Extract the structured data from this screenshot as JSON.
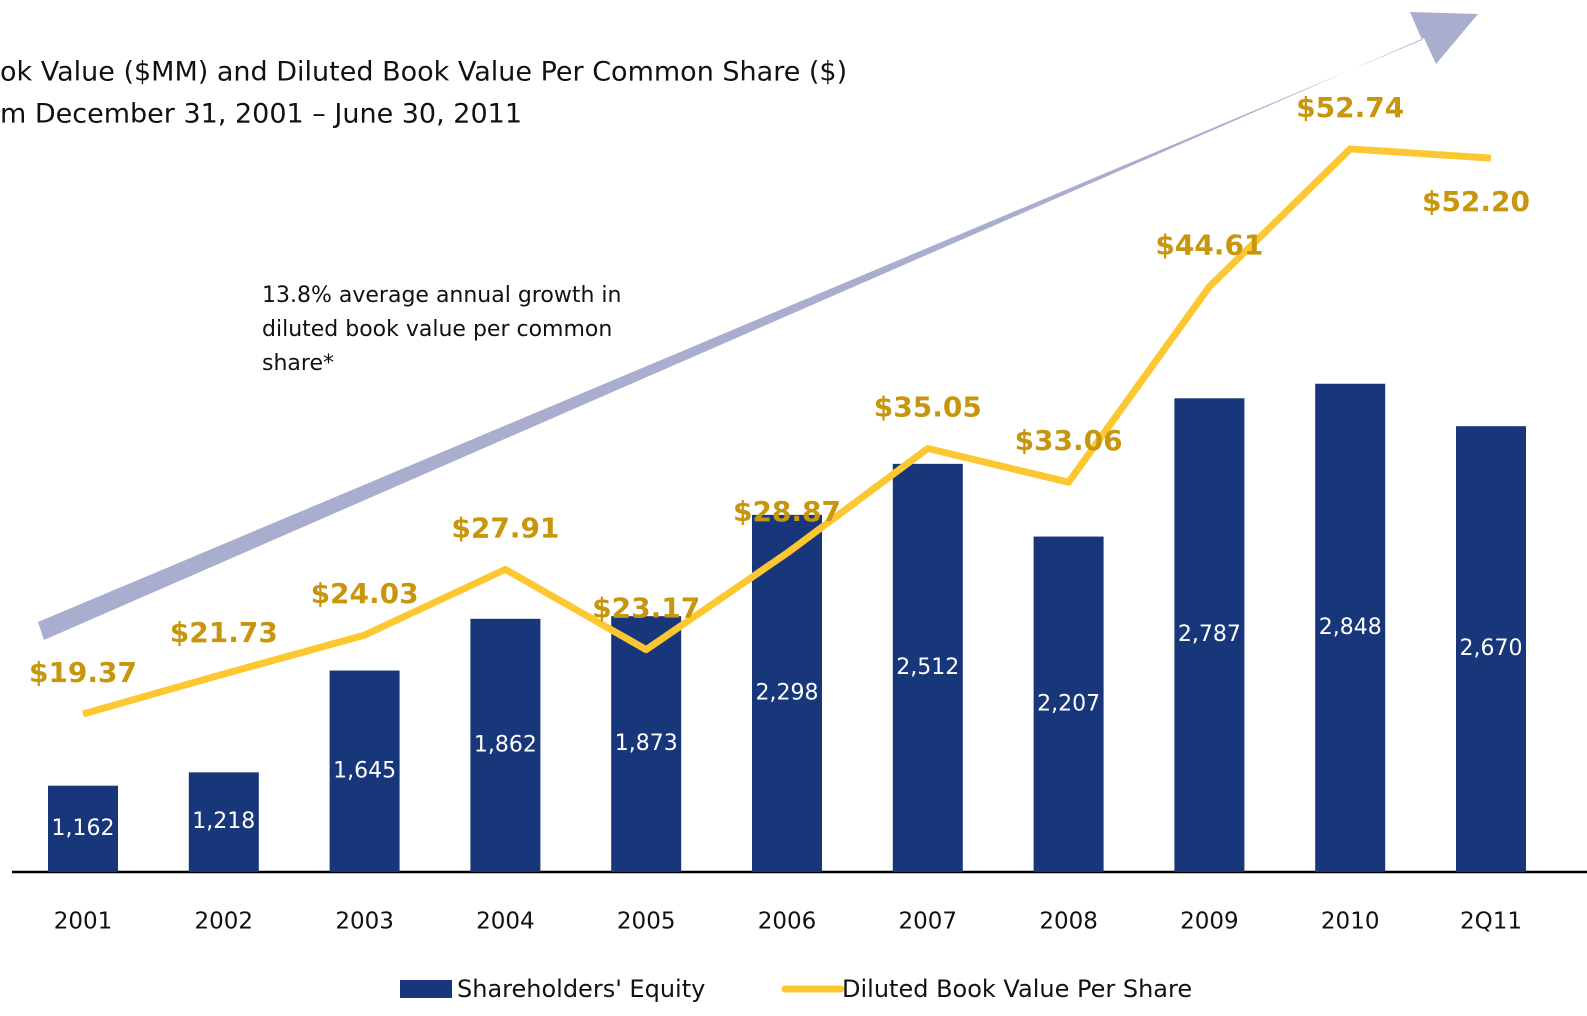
{
  "chart_data": {
    "type": "bar",
    "title": [
      "ok Value ($MM) and Diluted Book Value Per Common Share ($)",
      "m December 31, 2001 – June 30, 2011"
    ],
    "annotation": [
      "13.8% average annual growth in",
      "diluted book value per common",
      "share*"
    ],
    "categories": [
      "2001",
      "2002",
      "2003",
      "2004",
      "2005",
      "2006",
      "2007",
      "2008",
      "2009",
      "2010",
      "2Q11"
    ],
    "ylim": [
      800,
      3000
    ],
    "y2lim": [
      0,
      60
    ],
    "series": [
      {
        "name": "Shareholders' Equity",
        "type": "bar",
        "color": "#17377a",
        "values": [
          1162,
          1218,
          1645,
          1862,
          1873,
          2298,
          2512,
          2207,
          2787,
          2848,
          2670
        ],
        "value_labels": [
          "1,162",
          "1,218",
          "1,645",
          "1,862",
          "1,873",
          "2,298",
          "2,512",
          "2,207",
          "2,787",
          "2,848",
          "2,670"
        ]
      },
      {
        "name": "Diluted Book Value Per Share",
        "type": "line",
        "axis": "y2",
        "color": "#fcc730",
        "values": [
          19.37,
          21.73,
          24.03,
          27.91,
          23.17,
          28.87,
          35.05,
          33.06,
          44.61,
          52.74,
          52.2
        ],
        "value_labels": [
          "$19.37",
          "$21.73",
          "$24.03",
          "$27.91",
          "$23.17",
          "$28.87",
          "$35.05",
          "$33.06",
          "$44.61",
          "$52.74",
          "$52.20"
        ]
      }
    ]
  }
}
